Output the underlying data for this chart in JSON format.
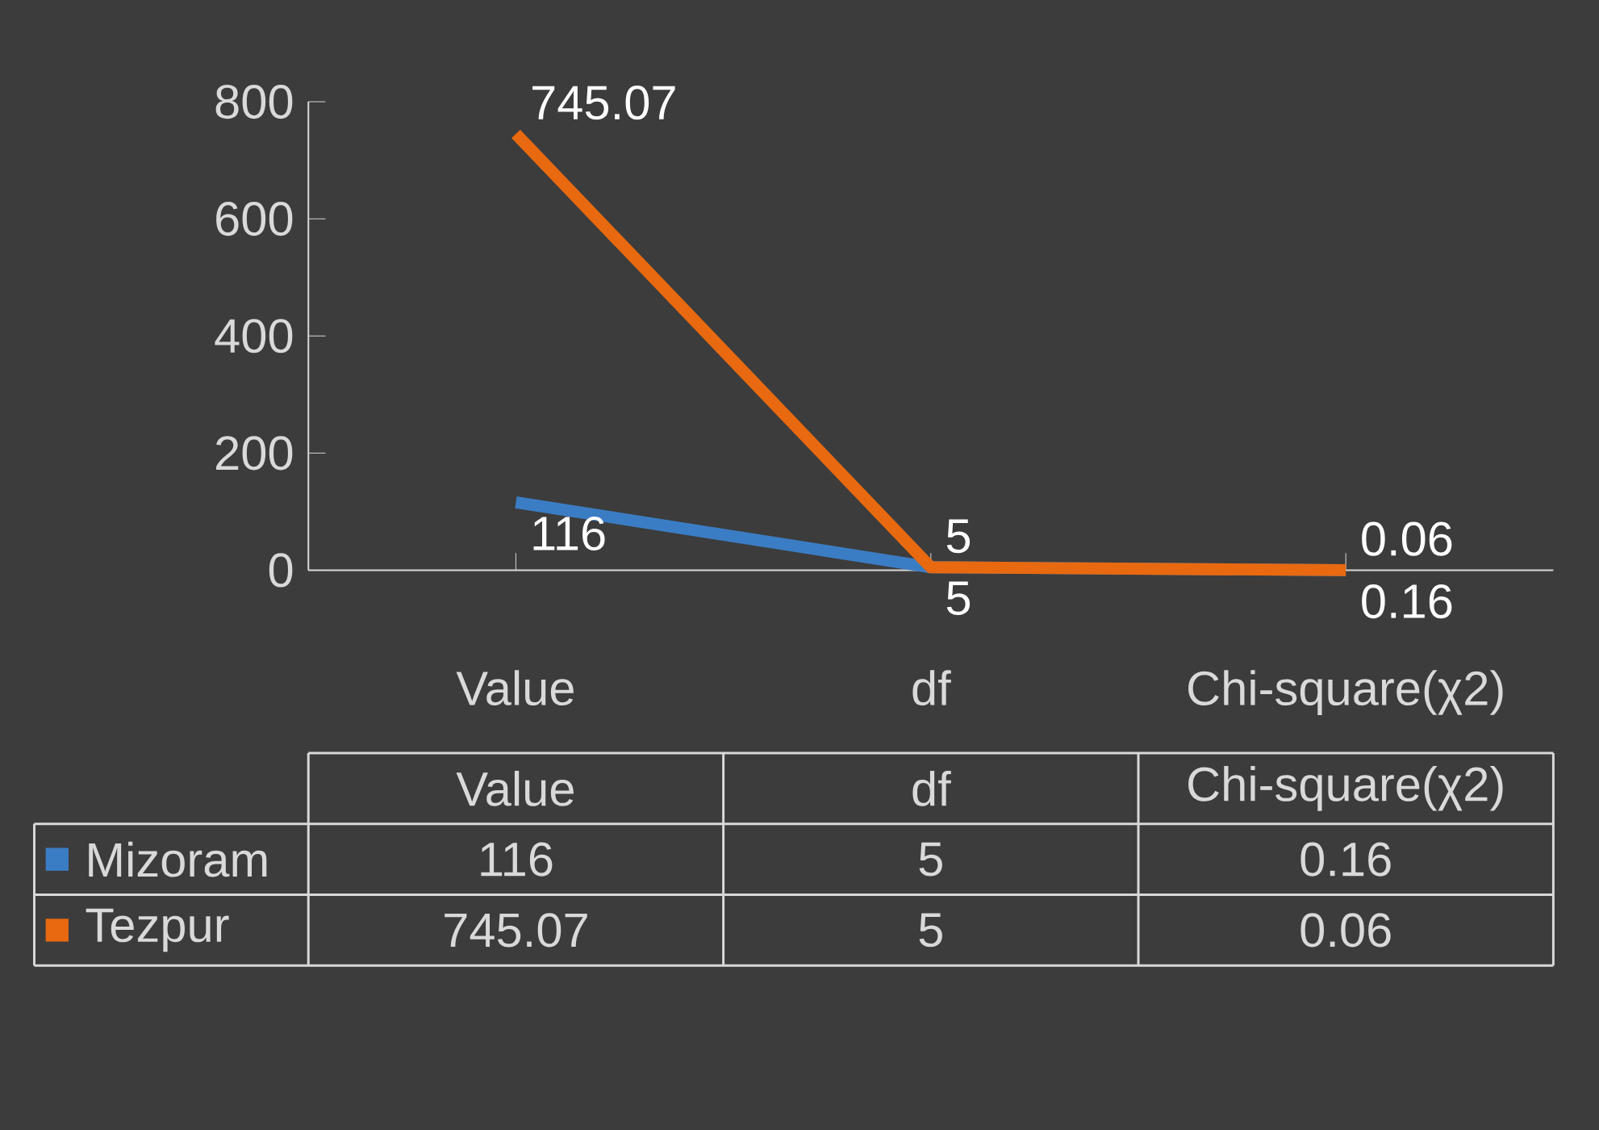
{
  "chart_data": {
    "type": "line",
    "categories": [
      "Value",
      "df",
      "Chi-square(χ2)"
    ],
    "series": [
      {
        "name": "Mizoram",
        "color": "#3b7dc4",
        "values": [
          116,
          5,
          0.16
        ],
        "value_labels": [
          "116",
          "5",
          "0.16"
        ]
      },
      {
        "name": "Tezpur",
        "color": "#e8690f",
        "values": [
          745.07,
          5,
          0.06
        ],
        "value_labels": [
          "745.07",
          "5",
          "0.06"
        ]
      }
    ],
    "ylim": [
      0,
      800
    ],
    "yticks": [
      0,
      200,
      400,
      600,
      800
    ],
    "grid": false,
    "legend": "bottom",
    "marker": "none",
    "line_style": "solid"
  }
}
